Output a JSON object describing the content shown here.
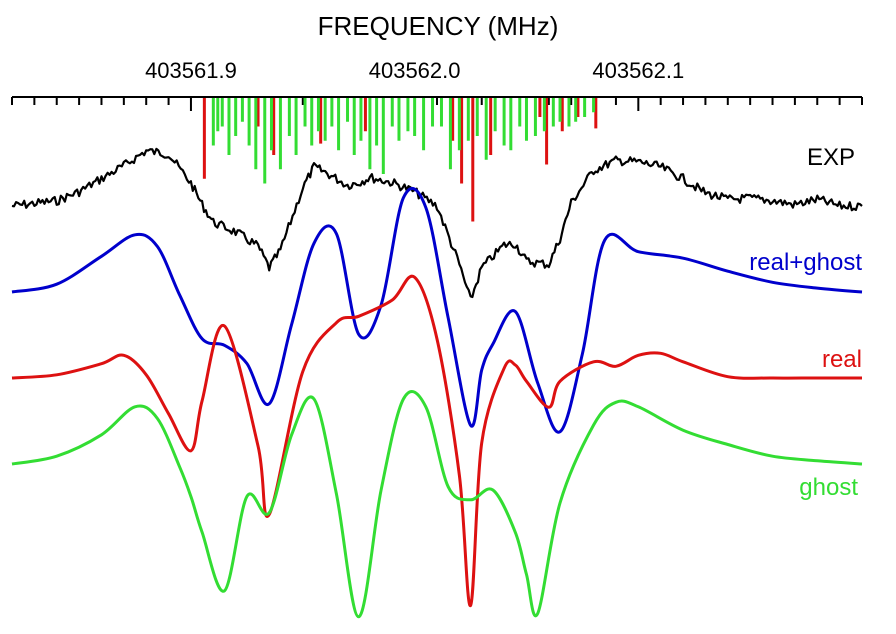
{
  "chart_data": {
    "type": "line",
    "title": "",
    "xlabel": "FREQUENCY (MHz)",
    "xlim": [
      403561.82,
      403562.2
    ],
    "x_ticks": [
      {
        "value": 403561.9,
        "label": "403561.9"
      },
      {
        "value": 403562.0,
        "label": "403562.0"
      },
      {
        "value": 403562.1,
        "label": "403562.1"
      }
    ],
    "minor_tick_step": 0.01,
    "grid": false,
    "legend": "inline labels at right",
    "y_axis": "offset stacked traces, arbitrary units (no printed scale)",
    "series": [
      {
        "name": "EXP",
        "color": "#000000",
        "offset": 0,
        "x": [
          403561.82,
          403561.84,
          403561.85,
          403561.86,
          403561.87,
          403561.88,
          403561.89,
          403561.9,
          403561.905,
          403561.91,
          403561.92,
          403561.93,
          403561.935,
          403561.94,
          403561.95,
          403561.955,
          403561.96,
          403561.97,
          403561.975,
          403561.98,
          403561.99,
          403562.0,
          403562.01,
          403562.02,
          403562.025,
          403562.03,
          403562.04,
          403562.045,
          403562.05,
          403562.06,
          403562.065,
          403562.07,
          403562.08,
          403562.09,
          403562.1,
          403562.11,
          403562.12,
          403562.13,
          403562.14,
          403562.15,
          403562.16,
          403562.17,
          403562.18,
          403562.19,
          403562.2
        ],
        "y": [
          0.0,
          0.08,
          0.22,
          0.42,
          0.62,
          0.85,
          0.8,
          0.35,
          0.02,
          -0.25,
          -0.4,
          -0.62,
          -0.95,
          -0.68,
          0.28,
          0.6,
          0.52,
          0.32,
          0.36,
          0.44,
          0.36,
          0.22,
          0.0,
          -0.9,
          -1.45,
          -0.95,
          -0.6,
          -0.58,
          -0.85,
          -0.9,
          -0.5,
          0.05,
          0.55,
          0.7,
          0.68,
          0.6,
          0.42,
          0.2,
          0.1,
          0.12,
          0.08,
          0.02,
          0.1,
          0.0,
          0.0
        ]
      },
      {
        "name": "real+ghost",
        "color": "#0000cc",
        "offset": -1,
        "x": [
          403561.82,
          403561.84,
          403561.86,
          403561.875,
          403561.885,
          403561.895,
          403561.905,
          403561.915,
          403561.925,
          403561.935,
          403561.945,
          403561.955,
          403561.965,
          403561.975,
          403561.985,
          403561.995,
          403562.005,
          403562.015,
          403562.025,
          403562.03,
          403562.035,
          403562.045,
          403562.055,
          403562.065,
          403562.075,
          403562.085,
          403562.1,
          403562.12,
          403562.14,
          403562.16,
          403562.18,
          403562.2
        ],
        "y": [
          0.0,
          0.12,
          0.55,
          0.88,
          0.7,
          -0.05,
          -0.72,
          -0.82,
          -1.1,
          -1.72,
          -0.5,
          0.75,
          0.9,
          -0.65,
          -0.2,
          1.45,
          1.3,
          -0.4,
          -2.05,
          -1.2,
          -0.8,
          -0.3,
          -1.4,
          -2.15,
          -0.95,
          0.8,
          0.62,
          0.52,
          0.32,
          0.15,
          0.06,
          0.0
        ]
      },
      {
        "name": "real",
        "color": "#dd1111",
        "offset": -2,
        "x": [
          403561.82,
          403561.84,
          403561.86,
          403561.87,
          403561.88,
          403561.89,
          403561.9,
          403561.905,
          403561.915,
          403561.93,
          403561.935,
          403561.95,
          403561.965,
          403561.975,
          403561.99,
          403562.0,
          403562.01,
          403562.02,
          403562.025,
          403562.03,
          403562.04,
          403562.045,
          403562.05,
          403562.06,
          403562.065,
          403562.08,
          403562.09,
          403562.1,
          403562.11,
          403562.12,
          403562.14,
          403562.16,
          403562.18,
          403562.2
        ],
        "y": [
          0.0,
          0.05,
          0.22,
          0.35,
          0.05,
          -0.55,
          -1.12,
          -0.35,
          0.8,
          -1.05,
          -2.1,
          0.1,
          0.85,
          0.95,
          1.2,
          1.55,
          0.6,
          -1.5,
          -3.5,
          -1.0,
          0.15,
          0.2,
          -0.05,
          -0.45,
          -0.05,
          0.25,
          0.18,
          0.35,
          0.38,
          0.25,
          0.02,
          0.0,
          0.0,
          0.0
        ]
      },
      {
        "name": "ghost",
        "color": "#33dd33",
        "offset": -3,
        "x": [
          403561.82,
          403561.84,
          403561.86,
          403561.875,
          403561.885,
          403561.895,
          403561.9,
          403561.905,
          403561.915,
          403561.925,
          403561.935,
          403561.945,
          403561.955,
          403561.965,
          403561.975,
          403561.985,
          403561.995,
          403562.005,
          403562.015,
          403562.025,
          403562.035,
          403562.045,
          403562.05,
          403562.055,
          403562.065,
          403562.08,
          403562.09,
          403562.1,
          403562.12,
          403562.14,
          403562.16,
          403562.18,
          403562.2
        ],
        "y": [
          0.0,
          0.12,
          0.45,
          0.88,
          0.7,
          -0.05,
          -0.5,
          -1.05,
          -1.95,
          -0.5,
          -0.75,
          0.45,
          1.0,
          -0.45,
          -2.35,
          -0.4,
          1.0,
          0.88,
          -0.35,
          -0.55,
          -0.4,
          -1.05,
          -1.7,
          -2.3,
          -0.6,
          0.6,
          0.95,
          0.88,
          0.52,
          0.3,
          0.12,
          0.05,
          0.0
        ]
      }
    ],
    "stick_spectra": [
      {
        "name": "",
        "color": "#dd1111",
        "x": [
          403561.906,
          403561.93,
          403561.937,
          403561.958,
          403561.978,
          403562.017,
          403562.021,
          403562.026,
          403562.034,
          403562.056,
          403562.059,
          403562.066,
          403562.073,
          403562.081
        ],
        "length": [
          0.85,
          0.3,
          0.6,
          0.48,
          0.35,
          0.45,
          0.9,
          1.3,
          0.6,
          0.2,
          0.7,
          0.35,
          0.2,
          0.32
        ]
      },
      {
        "name": "",
        "color": "#33dd33",
        "x": [
          403561.91,
          403561.912,
          403561.914,
          403561.917,
          403561.92,
          403561.923,
          403561.926,
          403561.929,
          403561.933,
          403561.936,
          403561.94,
          403561.944,
          403561.947,
          403561.951,
          403561.954,
          403561.957,
          403561.96,
          403561.963,
          403561.966,
          403561.97,
          403561.973,
          403561.976,
          403561.98,
          403561.983,
          403561.986,
          403561.99,
          403561.993,
          403561.997,
          403562.0,
          403562.004,
          403562.008,
          403562.012,
          403562.016,
          403562.02,
          403562.024,
          403562.028,
          403562.032,
          403562.036,
          403562.04,
          403562.043,
          403562.047,
          403562.05,
          403562.054,
          403562.058,
          403562.062,
          403562.065,
          403562.069,
          403562.072,
          403562.076,
          403562.08
        ],
        "length": [
          0.5,
          0.35,
          0.3,
          0.6,
          0.4,
          0.25,
          0.5,
          0.75,
          0.9,
          0.55,
          0.75,
          0.4,
          0.6,
          0.3,
          0.5,
          0.35,
          0.45,
          0.3,
          0.55,
          0.25,
          0.6,
          0.45,
          0.75,
          0.5,
          0.8,
          0.3,
          0.45,
          0.35,
          0.4,
          0.55,
          0.3,
          0.3,
          0.75,
          0.55,
          0.45,
          0.4,
          0.65,
          0.35,
          0.5,
          0.55,
          0.3,
          0.45,
          0.4,
          0.35,
          0.3,
          0.25,
          0.3,
          0.25,
          0.2,
          0.15
        ]
      }
    ]
  }
}
